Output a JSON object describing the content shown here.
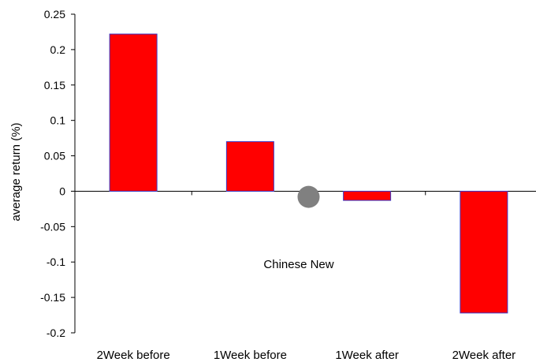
{
  "chart_data": {
    "type": "bar",
    "title": "",
    "xlabel": "",
    "ylabel": "average return (%)",
    "categories": [
      "2Week before",
      "1Week before",
      "1Week after",
      "2Week after"
    ],
    "values": [
      0.222,
      0.07,
      -0.013,
      -0.172
    ],
    "ylim": [
      -0.2,
      0.25
    ],
    "yticks": [
      0.25,
      0.2,
      0.15,
      0.1,
      0.05,
      0,
      -0.05,
      -0.1,
      -0.15,
      -0.2
    ],
    "ytick_labels": [
      "0.25",
      "0.2",
      "0.15",
      "0.1",
      "0.05",
      "0",
      "-0.05",
      "-0.1",
      "-0.15",
      "-0.2"
    ],
    "grid": false,
    "legend": "none",
    "bar_color": "#ff0000",
    "bar_edge_color": "#3a3ac8",
    "annotation": {
      "text": "Chinese New",
      "marker_color": "#808080",
      "marker_x_position": "between 1Week before and 1Week after",
      "marker_y_value": -0.008
    }
  }
}
